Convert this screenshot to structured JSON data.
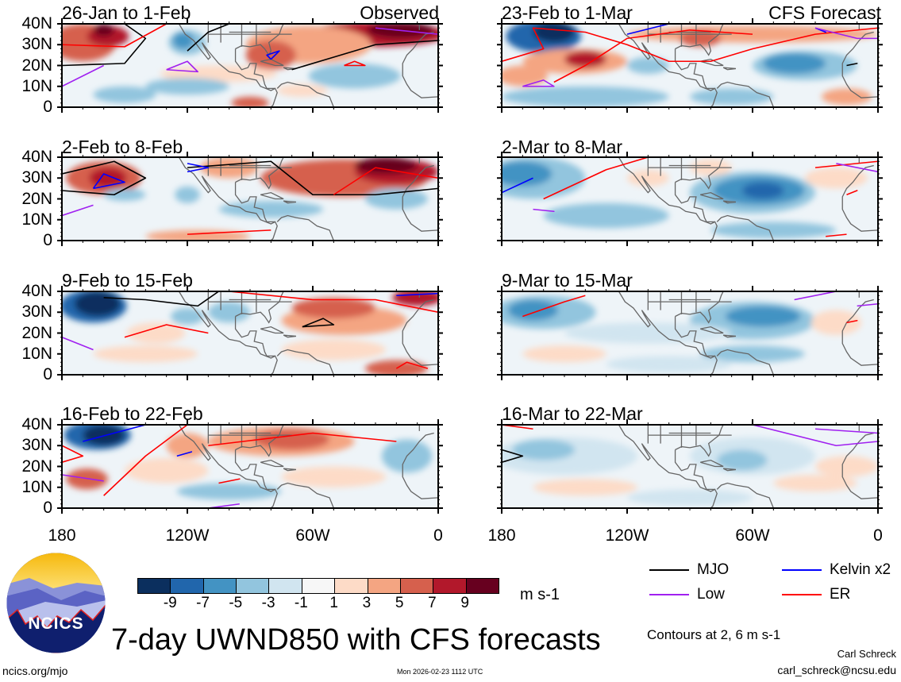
{
  "panels": {
    "observed": [
      {
        "title": "26-Jan to 1-Feb",
        "tag": "Observed"
      },
      {
        "title": "2-Feb to 8-Feb"
      },
      {
        "title": "9-Feb to 15-Feb"
      },
      {
        "title": "16-Feb to 22-Feb"
      }
    ],
    "forecast": [
      {
        "title": "23-Feb to 1-Mar",
        "tag": "CFS Forecast"
      },
      {
        "title": "2-Mar to 8-Mar"
      },
      {
        "title": "9-Mar to 15-Mar"
      },
      {
        "title": "16-Mar to 22-Mar"
      }
    ]
  },
  "axes": {
    "y_ticks": [
      "40N",
      "30N",
      "20N",
      "10N",
      "0"
    ],
    "x_ticks": [
      "180",
      "120W",
      "60W",
      "0"
    ]
  },
  "colorbar": {
    "labels": [
      "-9",
      "-7",
      "-5",
      "-3",
      "-1",
      "1",
      "3",
      "5",
      "7",
      "9"
    ],
    "colors": [
      "#0b2f5e",
      "#2166ac",
      "#4393c3",
      "#92c5de",
      "#d1e5f0",
      "#f7f7f7",
      "#fddbc7",
      "#f4a582",
      "#d6604d",
      "#b2182b",
      "#67001f"
    ],
    "units": "m s-1"
  },
  "legend": {
    "items": [
      {
        "label": "MJO",
        "color": "#000000"
      },
      {
        "label": "Kelvin x2",
        "color": "#0000ff"
      },
      {
        "label": "Low",
        "color": "#a020f0"
      },
      {
        "label": "ER",
        "color": "#ff0000"
      }
    ],
    "contours_note": "Contours at 2, 6 m s-1"
  },
  "title": "7-day UWND850 with CFS forecasts",
  "logo_text": "NCICS",
  "footer": {
    "url": "ncics.org/mjo",
    "timestamp": "Mon 2026-02-23 1112 UTC",
    "author": "Carl Schreck",
    "email": "carl_schreck@ncsu.edu"
  }
}
